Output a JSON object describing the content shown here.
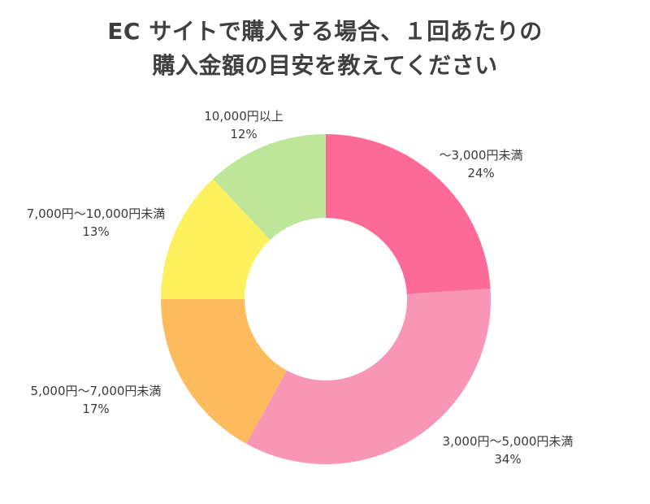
{
  "title_lines": [
    "EC サイトで購入する場合、１回あたりの",
    "購入金額の目安を教えてください"
  ],
  "chart_data": {
    "type": "pie",
    "donut": true,
    "title": "EC サイトで購入する場合、１回あたりの購入金額の目安を教えてください",
    "unit": "%",
    "start": "12 o'clock, clockwise",
    "categories": [
      "～3,000円未満",
      "3,000円～5,000円未満",
      "5,000円～7,000円未満",
      "7,000円～10,000円未満",
      "10,000円以上"
    ],
    "values": [
      24,
      34,
      17,
      13,
      12
    ],
    "value_labels": [
      "24%",
      "34%",
      "17%",
      "13%",
      "12%"
    ],
    "colors": [
      "#fd6a97",
      "#f996b6",
      "#fdbb5e",
      "#fcf05c",
      "#bde69a"
    ],
    "legend": "none (labels placed beside slices)"
  }
}
